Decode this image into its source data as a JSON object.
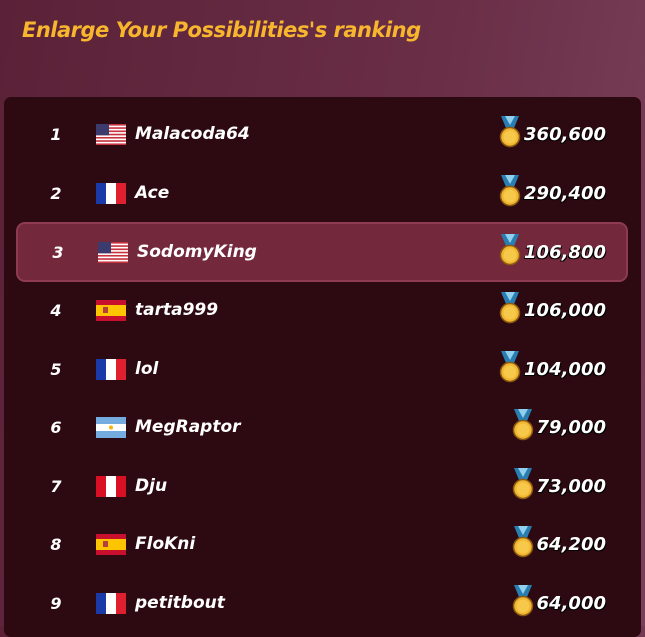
{
  "title": "Enlarge Your Possibilities's ranking",
  "colors": {
    "title": "#f7b62d",
    "panel": "#2d0a12",
    "highlight": "#73283c"
  },
  "rows": [
    {
      "rank": "1",
      "flag": "us",
      "name": "Malacoda64",
      "score": "360,600"
    },
    {
      "rank": "2",
      "flag": "fr",
      "name": "Ace",
      "score": "290,400"
    },
    {
      "rank": "3",
      "flag": "us",
      "name": "SodomyKing",
      "score": "106,800",
      "highlighted": true
    },
    {
      "rank": "4",
      "flag": "es",
      "name": "tarta999",
      "score": "106,000"
    },
    {
      "rank": "5",
      "flag": "fr",
      "name": "lol",
      "score": "104,000"
    },
    {
      "rank": "6",
      "flag": "ar",
      "name": "MegRaptor",
      "score": "79,000"
    },
    {
      "rank": "7",
      "flag": "pe",
      "name": "Dju",
      "score": "73,000"
    },
    {
      "rank": "8",
      "flag": "es",
      "name": "FloKni",
      "score": "64,200"
    },
    {
      "rank": "9",
      "flag": "fr",
      "name": "petitbout",
      "score": "64,000"
    }
  ]
}
